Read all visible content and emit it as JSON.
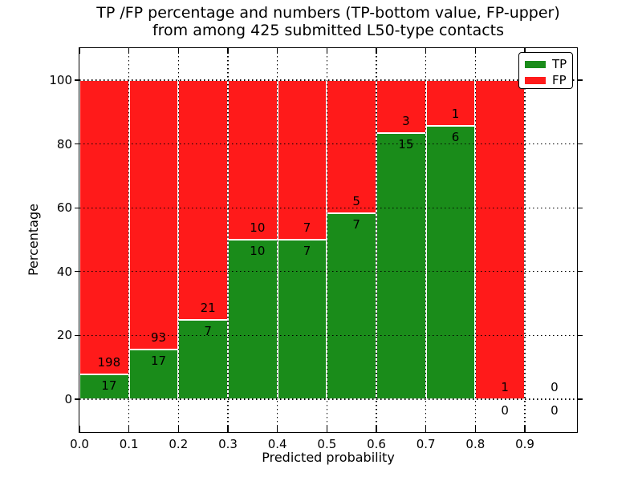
{
  "title": {
    "line1": "TP /FP percentage and numbers (TP-bottom value, FP-upper)",
    "line2": "from among 425 submitted L50-type contacts"
  },
  "axes": {
    "xlabel": "Predicted probability",
    "ylabel": "Percentage"
  },
  "legend": [
    {
      "label": "TP",
      "color": "#1a8c1a"
    },
    {
      "label": "FP",
      "color": "#ff1a1a"
    }
  ],
  "colors": {
    "tp_green": "#1a8c1a",
    "fp_red": "#ff1a1a",
    "bar_edge": "#ffffff",
    "grid": "#000000",
    "text": "#000000",
    "background": "#ffffff"
  },
  "chart_data": {
    "type": "bar",
    "stacked": true,
    "normalized": "each bin stacked to 100%",
    "title": "TP /FP percentage and numbers (TP-bottom value, FP-upper) from among 425 submitted L50-type contacts",
    "xlabel": "Predicted probability",
    "ylabel": "Percentage",
    "total_contacts": 425,
    "bin_width": 0.1,
    "bin_starts": [
      0.0,
      0.1,
      0.2,
      0.3,
      0.4,
      0.5,
      0.6,
      0.7,
      0.8,
      0.9
    ],
    "series": [
      {
        "name": "TP",
        "color": "#1a8c1a",
        "counts": [
          17,
          17,
          7,
          10,
          7,
          7,
          15,
          6,
          0,
          0
        ]
      },
      {
        "name": "FP",
        "color": "#ff1a1a",
        "counts": [
          198,
          93,
          21,
          10,
          7,
          5,
          3,
          1,
          1,
          0
        ]
      }
    ],
    "tp_percent": [
      7.9,
      15.5,
      25.0,
      50.0,
      50.0,
      58.3,
      83.3,
      85.7,
      0.0,
      null
    ],
    "annotation_rule": "FP count printed just above the TP/FP boundary, TP count just below it",
    "x_ticks": [
      "0.0",
      "0.1",
      "0.2",
      "0.3",
      "0.4",
      "0.5",
      "0.6",
      "0.7",
      "0.8",
      "0.9"
    ],
    "y_ticks": [
      0,
      20,
      40,
      60,
      80,
      100
    ],
    "xlim": [
      0.0,
      1.005
    ],
    "ylim": [
      -10.3,
      110.2
    ],
    "grid": "dotted black, on top of bars",
    "legend_position": "upper-right"
  }
}
